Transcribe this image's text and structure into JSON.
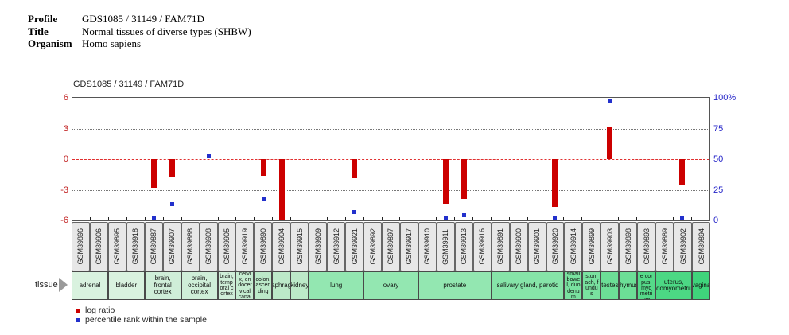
{
  "header": {
    "rows": [
      {
        "label": "Profile",
        "value": "GDS1085 / 31149 / FAM71D"
      },
      {
        "label": "Title",
        "value": "Normal tissues of diverse types (SHBW)"
      },
      {
        "label": "Organism",
        "value": "Homo sapiens"
      }
    ]
  },
  "chart": {
    "title": "GDS1085 / 31149 / FAM71D",
    "left_axis": {
      "color": "#c22222",
      "ticks": [
        {
          "label": "6",
          "value": 6
        },
        {
          "label": "3",
          "value": 3
        },
        {
          "label": "0",
          "value": 0
        },
        {
          "label": "-3",
          "value": -3
        },
        {
          "label": "-6",
          "value": -6
        }
      ]
    },
    "right_axis": {
      "color": "#2424c8",
      "ticks": [
        {
          "label": "100%",
          "value": 100
        },
        {
          "label": "75",
          "value": 75
        },
        {
          "label": "50",
          "value": 50
        },
        {
          "label": "25",
          "value": 25
        },
        {
          "label": "0",
          "value": 0
        }
      ]
    },
    "grid_values": [
      3,
      -3
    ],
    "zero_line_value": 0
  },
  "chart_data": {
    "type": "bar",
    "title": "GDS1085 / 31149 / FAM71D",
    "ylim_left": [
      -6,
      6
    ],
    "ylim_right": [
      0,
      100
    ],
    "legend_position": "bottom-left",
    "grid": "dotted at +3/-3, dashed red at 0",
    "categories": [
      "GSM39896",
      "GSM39906",
      "GSM39895",
      "GSM39918",
      "GSM39887",
      "GSM39907",
      "GSM39888",
      "GSM39908",
      "GSM39905",
      "GSM39919",
      "GSM39890",
      "GSM39904",
      "GSM39915",
      "GSM39909",
      "GSM39912",
      "GSM39921",
      "GSM39892",
      "GSM39897",
      "GSM39917",
      "GSM39910",
      "GSM39911",
      "GSM39913",
      "GSM39916",
      "GSM39891",
      "GSM39900",
      "GSM39901",
      "GSM39920",
      "GSM39914",
      "GSM39899",
      "GSM39903",
      "GSM39898",
      "GSM39893",
      "GSM39889",
      "GSM39902",
      "GSM39894"
    ],
    "series": [
      {
        "name": "log ratio",
        "axis": "left",
        "color": "#cc0000",
        "values": [
          null,
          null,
          null,
          null,
          -2.8,
          -1.7,
          null,
          null,
          null,
          null,
          -1.6,
          -6,
          null,
          null,
          null,
          -1.9,
          null,
          null,
          null,
          null,
          -4.4,
          -3.9,
          null,
          null,
          null,
          null,
          -4.7,
          null,
          null,
          3.2,
          null,
          null,
          null,
          -2.6,
          null
        ]
      },
      {
        "name": "percentile rank within the sample",
        "axis": "right",
        "color": "#2230cc",
        "values": [
          null,
          null,
          null,
          null,
          2,
          13,
          null,
          52,
          null,
          null,
          17,
          null,
          null,
          null,
          null,
          7,
          null,
          null,
          null,
          null,
          2,
          4,
          null,
          null,
          null,
          null,
          2,
          null,
          null,
          97,
          null,
          null,
          null,
          2,
          null
        ]
      }
    ],
    "tissue_groups": [
      {
        "label": "adrenal",
        "span": 2,
        "color": "#d9f2df"
      },
      {
        "label": "bladder",
        "span": 2,
        "color": "#d9f2df"
      },
      {
        "label": "brain, frontal cortex",
        "span": 2,
        "color": "#cfeed8"
      },
      {
        "label": "brain, occipital cortex",
        "span": 2,
        "color": "#cfeed8"
      },
      {
        "label": "brain, temporal cortex",
        "span": 1,
        "color": "#cfeed8"
      },
      {
        "label": "cervix, endocervical canal",
        "span": 1,
        "color": "#c5ecd0"
      },
      {
        "label": "colon, ascending",
        "span": 1,
        "color": "#bce9c8"
      },
      {
        "label": "diaphragm",
        "span": 1,
        "color": "#bce9c8"
      },
      {
        "label": "kidney",
        "span": 1,
        "color": "#bce9c8"
      },
      {
        "label": "lung",
        "span": 3,
        "color": "#93e7b1"
      },
      {
        "label": "ovary",
        "span": 3,
        "color": "#93e7b1"
      },
      {
        "label": "prostate",
        "span": 4,
        "color": "#93e7b1"
      },
      {
        "label": "salivary gland, parotid",
        "span": 4,
        "color": "#86e4a8"
      },
      {
        "label": "small bowel, duodenum",
        "span": 1,
        "color": "#79e19f"
      },
      {
        "label": "stomach, fundus",
        "span": 1,
        "color": "#79e19f"
      },
      {
        "label": "testes",
        "span": 1,
        "color": "#6cde96"
      },
      {
        "label": "thymus",
        "span": 1,
        "color": "#6cde96"
      },
      {
        "label": "uterine corpus, myometrium",
        "span": 1,
        "color": "#55da89"
      },
      {
        "label": "uterus, endomyometrium",
        "span": 2,
        "color": "#4cd884"
      },
      {
        "label": "vagina",
        "span": 1,
        "color": "#3fd47b"
      }
    ]
  },
  "tissue_row": {
    "label": "tissue"
  },
  "legend": {
    "items": [
      {
        "label": "log ratio",
        "color": "#cc0000"
      },
      {
        "label": "percentile rank within the sample",
        "color": "#2230cc"
      }
    ]
  }
}
